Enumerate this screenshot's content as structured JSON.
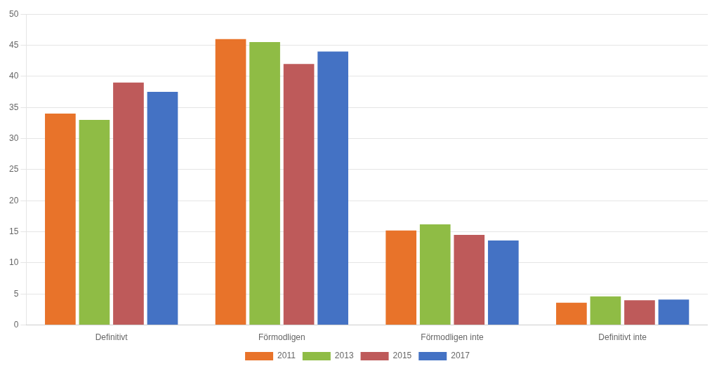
{
  "chart_data": {
    "type": "bar",
    "categories": [
      "Definitivt",
      "Förmodligen",
      "Förmodligen inte",
      "Definitivt inte"
    ],
    "series": [
      {
        "name": "2011",
        "color": "#E8732A",
        "values": [
          34,
          46,
          15.2,
          3.6
        ]
      },
      {
        "name": "2013",
        "color": "#8FBC45",
        "values": [
          33,
          45.5,
          16.2,
          4.6
        ]
      },
      {
        "name": "2015",
        "color": "#BE5A5A",
        "values": [
          39,
          42,
          14.5,
          4.0
        ]
      },
      {
        "name": "2017",
        "color": "#4472C4",
        "values": [
          37.5,
          44,
          13.6,
          4.1
        ]
      }
    ],
    "ylim": [
      0,
      50
    ],
    "yticks": [
      0,
      5,
      10,
      15,
      20,
      25,
      30,
      35,
      40,
      45,
      50
    ],
    "grid": true,
    "legend": "bottom"
  }
}
